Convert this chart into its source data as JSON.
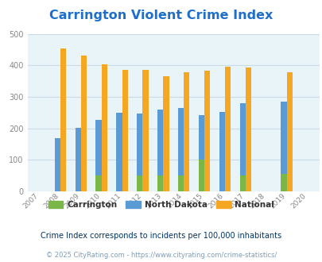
{
  "title": "Carrington Violent Crime Index",
  "title_color": "#1e6fcc",
  "years": [
    "2007",
    "2008",
    "2009",
    "2010",
    "2011",
    "2012",
    "2013",
    "2014",
    "2015",
    "2016",
    "2017",
    "2018",
    "2019",
    "2020"
  ],
  "carrington": [
    0,
    0,
    0,
    50,
    0,
    50,
    50,
    50,
    100,
    0,
    50,
    0,
    55,
    0
  ],
  "north_dakota": [
    0,
    168,
    202,
    228,
    250,
    248,
    261,
    264,
    241,
    253,
    281,
    0,
    284,
    0
  ],
  "national": [
    0,
    455,
    432,
    405,
    387,
    387,
    366,
    379,
    383,
    397,
    394,
    0,
    379,
    0
  ],
  "carrington_color": "#7ab648",
  "north_dakota_color": "#5b9bd5",
  "national_color": "#f5a623",
  "plot_bg_color": "#e8f4f8",
  "ylim": [
    0,
    500
  ],
  "yticks": [
    0,
    100,
    200,
    300,
    400,
    500
  ],
  "bar_width": 0.28,
  "subtitle": "Crime Index corresponds to incidents per 100,000 inhabitants",
  "subtitle_color": "#003366",
  "footer": "© 2025 CityRating.com - https://www.cityrating.com/crime-statistics/",
  "footer_color": "#7f9db9",
  "legend_labels": [
    "Carrington",
    "North Dakota",
    "National"
  ],
  "grid_color": "#c8dce8",
  "axis_label_color": "#888888"
}
